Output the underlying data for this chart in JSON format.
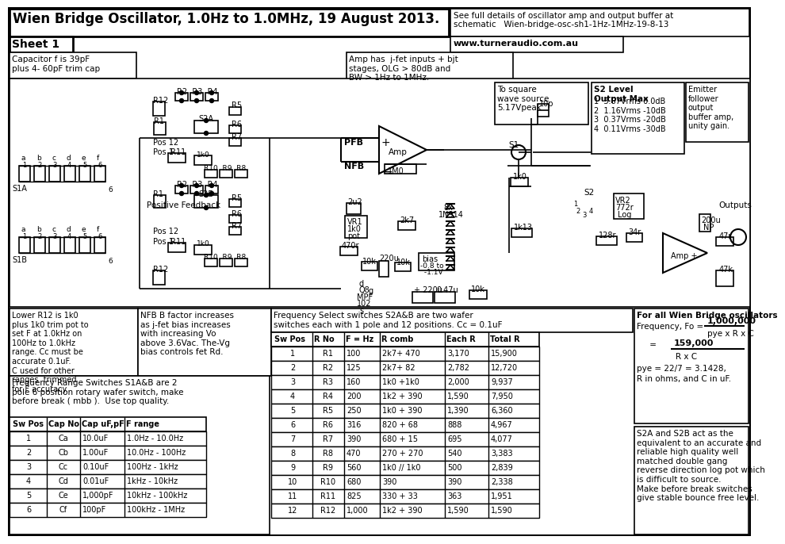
{
  "title": "Wien Bridge Oscillator, 1.0Hz to 1.0MHz, 19 August 2013.",
  "sheet": "Sheet 1",
  "top_right1": "See full details of oscillator amp and output buffer at",
  "top_right2": "schematic   Wien-bridge-osc-sh1-1Hz-1MHz-19-8-13",
  "website": "www.turneraudio.com.au",
  "cap_note": "Capacitor f is 39pF\nplus 4- 60pF trim cap",
  "lower_r12_note": "Lower R12 is 1k0\nplus 1k0 trim pot to\nset F at 1.0kHz on\n100Hz to 1.0kHz\nrange. Cc must be\naccurate 0.1uF.\nC used for other\nranges  trimmed\nfor F accuracy.",
  "freq_range_note": "Frequency Range Switches S1A&B are 2\npole 6 position rotary wafer switch, make\nbefore break ( mbb ).  Use top quality.",
  "amp_note": "Amp has  j-fet inputs + bjt\nstages, OLG > 80dB and\nBW > 1Hz to 1MHz.",
  "nfb_note": "NFB B factor increases\nas j-fet bias increases\nwith increasing Vo\nabove 3.6Vac. The-Vg\nbias controls fet Rd.",
  "freq_select_note": "Frequency Select switches S2A&B are two wafer\nswitches each with 1 pole and 12 positions. Cc = 0.1uF",
  "s2_level_title": "S2 Level\nOutput Max",
  "s2_levels": "1  3.67Vrms 0.0dB\n2  1.16Vrms -10dB\n3  0.37Vrms -20dB\n4  0.11Vrms -30dB",
  "emitter_note": "Emitter\nfollower\noutput\nbuffer amp,\nunity gain.",
  "square_wave_note": "To square\nwave source\n5.17Vpeak",
  "wien_title": "For all Wien Bridge oscillators",
  "s2a_s2b_note": "S2A and S2B act as the\nequivalent to an accurate and\nreliable high quality well\nmatched double gang\nreverse direction log pot which\nis difficult to source.\nMake before break switches\ngive stable bounce free level.",
  "sw_table1_headers": [
    "Sw Pos",
    "Cap No",
    "Cap uF,pF",
    "F range"
  ],
  "sw_table1_data": [
    [
      "1",
      "Ca",
      "10.0uF",
      "1.0Hz - 10.0Hz"
    ],
    [
      "2",
      "Cb",
      "1.00uF",
      "10.0Hz - 100Hz"
    ],
    [
      "3",
      "Cc",
      "0.10uF",
      "100Hz - 1kHz"
    ],
    [
      "4",
      "Cd",
      "0.01uF",
      "1kHz - 10kHz"
    ],
    [
      "5",
      "Ce",
      "1,000pF",
      "10kHz - 100kHz"
    ],
    [
      "6",
      "Cf",
      "100pF",
      "100kHz - 1MHz"
    ]
  ],
  "sw_table2_headers": [
    "Sw Pos",
    "R No",
    "F = Hz",
    "R comb",
    "Each R",
    "Total R"
  ],
  "sw_table2_data": [
    [
      "1",
      "R1",
      "100",
      "2k7+ 470",
      "3,170",
      "15,900"
    ],
    [
      "2",
      "R2",
      "125",
      "2k7+ 82",
      "2,782",
      "12,720"
    ],
    [
      "3",
      "R3",
      "160",
      "1k0 +1k0",
      "2,000",
      "9,937"
    ],
    [
      "4",
      "R4",
      "200",
      "1k2 + 390",
      "1,590",
      "7,950"
    ],
    [
      "5",
      "R5",
      "250",
      "1k0 + 390",
      "1,390",
      "6,360"
    ],
    [
      "6",
      "R6",
      "316",
      "820 + 68",
      "888",
      "4,967"
    ],
    [
      "7",
      "R7",
      "390",
      "680 + 15",
      "695",
      "4,077"
    ],
    [
      "8",
      "R8",
      "470",
      "270 + 270",
      "540",
      "3,383"
    ],
    [
      "9",
      "R9",
      "560",
      "1k0 // 1k0",
      "500",
      "2,839"
    ],
    [
      "10",
      "R10",
      "680",
      "390",
      "390",
      "2,338"
    ],
    [
      "11",
      "R11",
      "825",
      "330 + 33",
      "363",
      "1,951"
    ],
    [
      "12",
      "R12",
      "1,000",
      "1k2 + 390",
      "1,590",
      "1,590"
    ]
  ]
}
